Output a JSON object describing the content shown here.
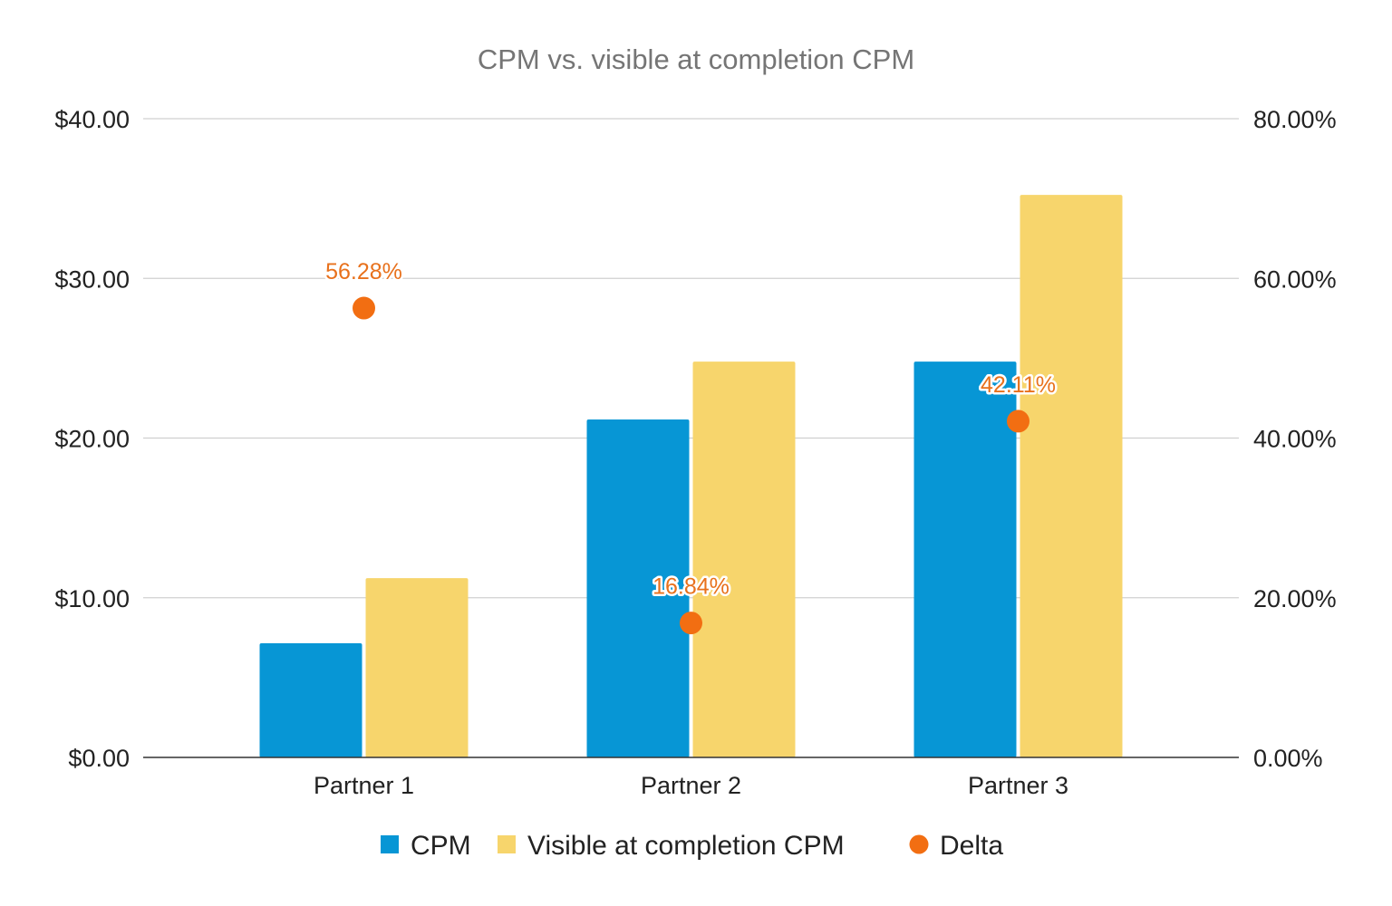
{
  "chart_data": {
    "type": "bar",
    "title": "CPM vs. visible at completion CPM",
    "categories": [
      "Partner 1",
      "Partner 2",
      "Partner 3"
    ],
    "series": [
      {
        "name": "CPM",
        "kind": "bar",
        "axis": "left",
        "color": "#0796d5",
        "values": [
          7.15,
          21.16,
          24.79
        ]
      },
      {
        "name": "Visible at completion CPM",
        "kind": "bar",
        "axis": "left",
        "color": "#f7d56c",
        "values": [
          11.23,
          24.79,
          35.23
        ]
      },
      {
        "name": "Delta",
        "kind": "scatter",
        "axis": "right",
        "color": "#f26e12",
        "values": [
          56.28,
          16.84,
          42.11
        ],
        "labels": [
          "56.28%",
          "16.84%",
          "42.11%"
        ]
      }
    ],
    "y_left": {
      "range": [
        0,
        40
      ],
      "ticks": [
        0,
        10,
        20,
        30,
        40
      ],
      "tick_labels": [
        "$0.00",
        "$10.00",
        "$20.00",
        "$30.00",
        "$40.00"
      ]
    },
    "y_right": {
      "range": [
        0,
        80
      ],
      "ticks": [
        0,
        20,
        40,
        60,
        80
      ],
      "tick_labels": [
        "0.00%",
        "20.00%",
        "40.00%",
        "60.00%",
        "80.00%"
      ]
    },
    "grid": true,
    "legend": "bottom",
    "xlabel": "",
    "ylabel": ""
  }
}
